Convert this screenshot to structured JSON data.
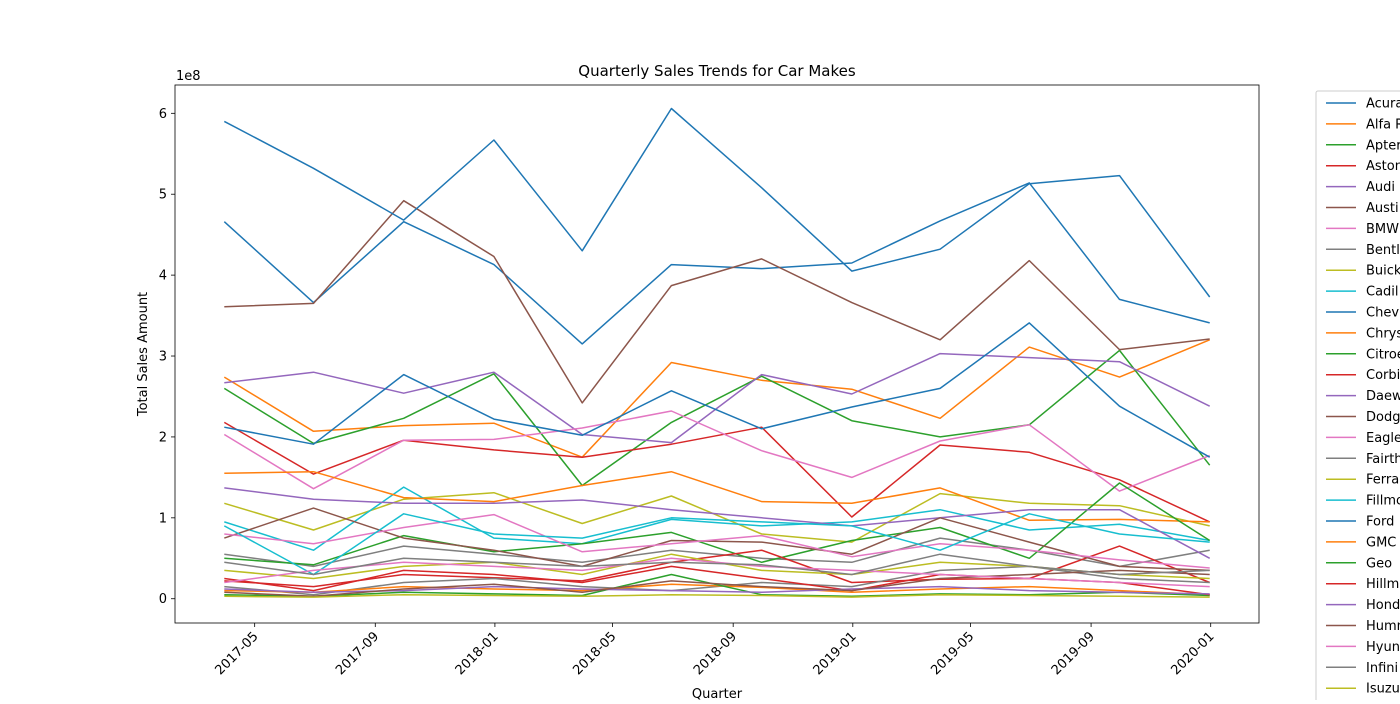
{
  "chart_data": {
    "type": "line",
    "title": "Quarterly Sales Trends for Car Makes",
    "xlabel": "Quarter",
    "ylabel": "Total Sales Amount",
    "y_scale_label": "1e8",
    "ylim": [
      -30000000,
      635000000
    ],
    "y_ticks": [
      0,
      100000000,
      200000000,
      300000000,
      400000000,
      500000000,
      600000000
    ],
    "y_tick_labels": [
      "0",
      "1",
      "2",
      "3",
      "4",
      "5",
      "6"
    ],
    "x_tick_labels": [
      "2017-05",
      "2017-09",
      "2018-01",
      "2018-05",
      "2018-09",
      "2019-01",
      "2019-05",
      "2019-09",
      "2020-01"
    ],
    "x": [
      "2017-03-31",
      "2017-06-30",
      "2017-09-30",
      "2017-12-31",
      "2018-03-31",
      "2018-06-30",
      "2018-09-30",
      "2018-12-31",
      "2019-03-31",
      "2019-06-30",
      "2019-09-30",
      "2019-12-31"
    ],
    "legend_position": "outside-right",
    "grid": false,
    "colors": [
      "#1f77b4",
      "#ff7f0e",
      "#2ca02c",
      "#d62728",
      "#9467bd",
      "#8c564b",
      "#e377c2",
      "#7f7f7f",
      "#bcbd22",
      "#17becf"
    ],
    "series": [
      {
        "name": "Acura",
        "values": [
          466000000,
          366000000,
          466000000,
          413000000,
          315000000,
          413000000,
          408000000,
          415000000,
          467000000,
          514000000,
          370000000,
          341000000
        ]
      },
      {
        "name": "Alfa R",
        "values": [
          274000000,
          207000000,
          214000000,
          217000000,
          175000000,
          292000000,
          270000000,
          259000000,
          223000000,
          311000000,
          274000000,
          320000000
        ]
      },
      {
        "name": "Apter",
        "values": [
          260000000,
          192000000,
          223000000,
          278000000,
          140000000,
          218000000,
          275000000,
          220000000,
          200000000,
          215000000,
          307000000,
          165000000
        ]
      },
      {
        "name": "Aston",
        "values": [
          218000000,
          154000000,
          196000000,
          184000000,
          175000000,
          191000000,
          212000000,
          101000000,
          190000000,
          181000000,
          147000000,
          95000000
        ]
      },
      {
        "name": "Audi",
        "values": [
          267000000,
          280000000,
          254000000,
          280000000,
          203000000,
          193000000,
          277000000,
          253000000,
          303000000,
          298000000,
          293000000,
          238000000
        ]
      },
      {
        "name": "Austi",
        "values": [
          361000000,
          365000000,
          492000000,
          423000000,
          242000000,
          387000000,
          420000000,
          366000000,
          320000000,
          418000000,
          308000000,
          321000000
        ]
      },
      {
        "name": "BMW",
        "values": [
          203000000,
          136000000,
          196000000,
          197000000,
          211000000,
          232000000,
          183000000,
          150000000,
          195000000,
          215000000,
          133000000,
          177000000
        ]
      },
      {
        "name": "Bentl",
        "values": [
          55000000,
          40000000,
          65000000,
          55000000,
          45000000,
          60000000,
          50000000,
          45000000,
          75000000,
          60000000,
          40000000,
          60000000
        ]
      },
      {
        "name": "Buick",
        "values": [
          118000000,
          85000000,
          123000000,
          131000000,
          93000000,
          127000000,
          80000000,
          70000000,
          130000000,
          118000000,
          115000000,
          90000000
        ]
      },
      {
        "name": "Cadil",
        "values": [
          95000000,
          60000000,
          138000000,
          75000000,
          68000000,
          98000000,
          90000000,
          95000000,
          110000000,
          85000000,
          92000000,
          72000000
        ]
      },
      {
        "name": "Chev",
        "values": [
          590000000,
          532000000,
          468000000,
          567000000,
          430000000,
          606000000,
          508000000,
          405000000,
          432000000,
          513000000,
          523000000,
          373000000
        ]
      },
      {
        "name": "Chrys",
        "values": [
          155000000,
          157000000,
          125000000,
          120000000,
          140000000,
          157000000,
          120000000,
          118000000,
          137000000,
          97000000,
          98000000,
          95000000
        ]
      },
      {
        "name": "Citroe",
        "values": [
          50000000,
          42000000,
          78000000,
          58000000,
          68000000,
          82000000,
          45000000,
          72000000,
          88000000,
          50000000,
          143000000,
          72000000
        ]
      },
      {
        "name": "Corbi",
        "values": [
          22000000,
          15000000,
          30000000,
          26000000,
          22000000,
          45000000,
          60000000,
          20000000,
          24000000,
          25000000,
          65000000,
          20000000
        ]
      },
      {
        "name": "Daew",
        "values": [
          137000000,
          123000000,
          118000000,
          118000000,
          122000000,
          110000000,
          100000000,
          90000000,
          100000000,
          110000000,
          110000000,
          50000000
        ]
      },
      {
        "name": "Dodg",
        "values": [
          75000000,
          112000000,
          75000000,
          60000000,
          40000000,
          72000000,
          70000000,
          55000000,
          100000000,
          70000000,
          40000000,
          35000000
        ]
      },
      {
        "name": "Eagle",
        "values": [
          80000000,
          68000000,
          88000000,
          104000000,
          58000000,
          68000000,
          78000000,
          52000000,
          68000000,
          60000000,
          48000000,
          38000000
        ]
      },
      {
        "name": "Fairth",
        "values": [
          15000000,
          5000000,
          20000000,
          25000000,
          15000000,
          10000000,
          20000000,
          15000000,
          35000000,
          40000000,
          25000000,
          20000000
        ]
      },
      {
        "name": "Ferra",
        "values": [
          35000000,
          25000000,
          40000000,
          45000000,
          30000000,
          55000000,
          35000000,
          30000000,
          45000000,
          40000000,
          30000000,
          25000000
        ]
      },
      {
        "name": "Fillmo",
        "values": [
          90000000,
          30000000,
          105000000,
          80000000,
          75000000,
          100000000,
          95000000,
          90000000,
          60000000,
          105000000,
          80000000,
          70000000
        ]
      },
      {
        "name": "Ford",
        "values": [
          212000000,
          191000000,
          277000000,
          222000000,
          202000000,
          257000000,
          210000000,
          237000000,
          260000000,
          341000000,
          238000000,
          175000000
        ]
      },
      {
        "name": "GMC",
        "values": [
          10000000,
          8000000,
          15000000,
          12000000,
          10000000,
          18000000,
          14000000,
          8000000,
          12000000,
          15000000,
          10000000,
          5000000
        ]
      },
      {
        "name": "Geo",
        "values": [
          5000000,
          3000000,
          8000000,
          6000000,
          4000000,
          30000000,
          5000000,
          3000000,
          6000000,
          5000000,
          8000000,
          4000000
        ]
      },
      {
        "name": "Hillm",
        "values": [
          25000000,
          10000000,
          35000000,
          30000000,
          20000000,
          40000000,
          25000000,
          10000000,
          30000000,
          25000000,
          20000000,
          5000000
        ]
      },
      {
        "name": "Hond",
        "values": [
          12000000,
          8000000,
          10000000,
          15000000,
          12000000,
          10000000,
          8000000,
          12000000,
          15000000,
          10000000,
          8000000,
          6000000
        ]
      },
      {
        "name": "Humm",
        "values": [
          8000000,
          3000000,
          12000000,
          18000000,
          8000000,
          22000000,
          15000000,
          10000000,
          25000000,
          30000000,
          35000000,
          30000000
        ]
      },
      {
        "name": "Hyun",
        "values": [
          20000000,
          35000000,
          45000000,
          40000000,
          35000000,
          50000000,
          40000000,
          35000000,
          30000000,
          25000000,
          20000000,
          15000000
        ]
      },
      {
        "name": "Infini",
        "values": [
          45000000,
          30000000,
          50000000,
          45000000,
          40000000,
          45000000,
          42000000,
          30000000,
          55000000,
          40000000,
          30000000,
          35000000
        ]
      },
      {
        "name": "Isuzu",
        "values": [
          3000000,
          2000000,
          5000000,
          4000000,
          3000000,
          5000000,
          4000000,
          2000000,
          5000000,
          4000000,
          3000000,
          2000000
        ]
      }
    ]
  }
}
